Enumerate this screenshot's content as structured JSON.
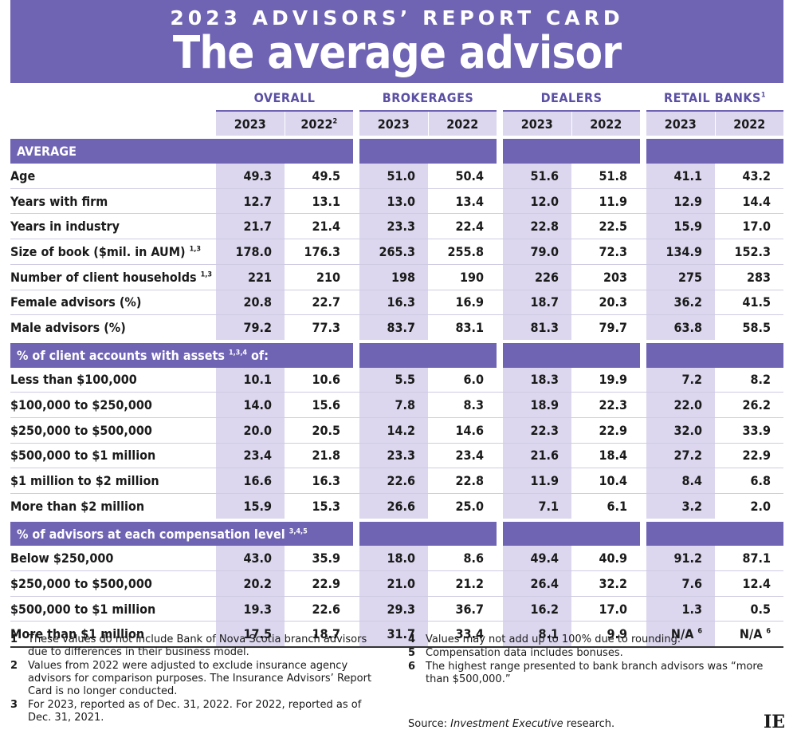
{
  "banner": {
    "kicker": "2023 ADVISORS’ REPORT CARD",
    "headline": "The  average advisor"
  },
  "groups": [
    {
      "label": "OVERALL",
      "sup": ""
    },
    {
      "label": "BROKERAGES",
      "sup": ""
    },
    {
      "label": "DEALERS",
      "sup": ""
    },
    {
      "label": "RETAIL BANKS",
      "sup": "1"
    }
  ],
  "years": [
    {
      "label": "2023",
      "sup": ""
    },
    {
      "label": "2022",
      "sup": "2"
    },
    {
      "label": "2023",
      "sup": ""
    },
    {
      "label": "2022",
      "sup": ""
    },
    {
      "label": "2023",
      "sup": ""
    },
    {
      "label": "2022",
      "sup": ""
    },
    {
      "label": "2023",
      "sup": ""
    },
    {
      "label": "2022",
      "sup": ""
    }
  ],
  "sections": [
    {
      "title": "AVERAGE",
      "title_sup": "",
      "title_suffix": "",
      "rows": [
        {
          "label": "Age",
          "sup": "",
          "values": [
            "49.3",
            "49.5",
            "51.0",
            "50.4",
            "51.6",
            "51.8",
            "41.1",
            "43.2"
          ]
        },
        {
          "label": "Years with firm",
          "sup": "",
          "values": [
            "12.7",
            "13.1",
            "13.0",
            "13.4",
            "12.0",
            "11.9",
            "12.9",
            "14.4"
          ]
        },
        {
          "label": "Years in industry",
          "sup": "",
          "values": [
            "21.7",
            "21.4",
            "23.3",
            "22.4",
            "22.8",
            "22.5",
            "15.9",
            "17.0"
          ]
        },
        {
          "label": "Size of book ($mil. in AUM)",
          "sup": "1,3",
          "values": [
            "178.0",
            "176.3",
            "265.3",
            "255.8",
            "79.0",
            "72.3",
            "134.9",
            "152.3"
          ]
        },
        {
          "label": "Number of client households",
          "sup": "1,3",
          "values": [
            "221",
            "210",
            "198",
            "190",
            "226",
            "203",
            "275",
            "283"
          ]
        },
        {
          "label": "Female advisors (%)",
          "sup": "",
          "values": [
            "20.8",
            "22.7",
            "16.3",
            "16.9",
            "18.7",
            "20.3",
            "36.2",
            "41.5"
          ]
        },
        {
          "label": "Male advisors (%)",
          "sup": "",
          "values": [
            "79.2",
            "77.3",
            "83.7",
            "83.1",
            "81.3",
            "79.7",
            "63.8",
            "58.5"
          ]
        }
      ]
    },
    {
      "title": "% of client accounts with assets",
      "title_sup": "1,3,4",
      "title_suffix": " of:",
      "rows": [
        {
          "label": "Less than $100,000",
          "sup": "",
          "values": [
            "10.1",
            "10.6",
            "5.5",
            "6.0",
            "18.3",
            "19.9",
            "7.2",
            "8.2"
          ]
        },
        {
          "label": "$100,000 to $250,000",
          "sup": "",
          "values": [
            "14.0",
            "15.6",
            "7.8",
            "8.3",
            "18.9",
            "22.3",
            "22.0",
            "26.2"
          ]
        },
        {
          "label": "$250,000 to $500,000",
          "sup": "",
          "values": [
            "20.0",
            "20.5",
            "14.2",
            "14.6",
            "22.3",
            "22.9",
            "32.0",
            "33.9"
          ]
        },
        {
          "label": "$500,000 to $1 million",
          "sup": "",
          "values": [
            "23.4",
            "21.8",
            "23.3",
            "23.4",
            "21.6",
            "18.4",
            "27.2",
            "22.9"
          ]
        },
        {
          "label": "$1 million to $2 million",
          "sup": "",
          "values": [
            "16.6",
            "16.3",
            "22.6",
            "22.8",
            "11.9",
            "10.4",
            "8.4",
            "6.8"
          ]
        },
        {
          "label": "More than $2 million",
          "sup": "",
          "values": [
            "15.9",
            "15.3",
            "26.6",
            "25.0",
            "7.1",
            "6.1",
            "3.2",
            "2.0"
          ]
        }
      ]
    },
    {
      "title": "% of advisors at each compensation level",
      "title_sup": "3,4,5",
      "title_suffix": "",
      "rows": [
        {
          "label": "Below $250,000",
          "sup": "",
          "values": [
            "43.0",
            "35.9",
            "18.0",
            "8.6",
            "49.4",
            "40.9",
            "91.2",
            "87.1"
          ]
        },
        {
          "label": "$250,000 to $500,000",
          "sup": "",
          "values": [
            "20.2",
            "22.9",
            "21.0",
            "21.2",
            "26.4",
            "32.2",
            "7.6",
            "12.4"
          ]
        },
        {
          "label": "$500,000 to $1 million",
          "sup": "",
          "values": [
            "19.3",
            "22.6",
            "29.3",
            "36.7",
            "16.2",
            "17.0",
            "1.3",
            "0.5"
          ]
        },
        {
          "label": "More than $1 million",
          "sup": "",
          "values": [
            "17.5",
            "18.7",
            "31.7",
            "33.4",
            "8.1",
            "9.9",
            "N/A",
            "N/A"
          ],
          "value_sups": [
            "",
            "",
            "",
            "",
            "",
            "",
            "6",
            "6"
          ]
        }
      ]
    }
  ],
  "notes_left": [
    {
      "n": "1",
      "text": "These values do not include Bank of Nova Scotia branch advisors due to differences in their business model."
    },
    {
      "n": "2",
      "text": "Values from 2022 were adjusted to exclude insurance agency advisors for comparison purposes. The Insurance Advisors’ Report Card is no longer conducted."
    },
    {
      "n": "3",
      "text": "For 2023, reported as of Dec. 31, 2022. For 2022, reported as of Dec. 31, 2021."
    }
  ],
  "notes_right": [
    {
      "n": "4",
      "text": "Values may not add up to 100% due to rounding."
    },
    {
      "n": "5",
      "text": "Compensation data includes bonuses."
    },
    {
      "n": "6",
      "text": "The highest range presented to bank branch advisors was “more than $500,000.”"
    }
  ],
  "source": {
    "prefix": "Source: ",
    "name": "Investment Executive",
    "suffix": " research."
  },
  "logo": "IE",
  "colors": {
    "banner": "#6f63b4",
    "shade": "#dcd7ee",
    "group_text": "#5a4fa3"
  }
}
